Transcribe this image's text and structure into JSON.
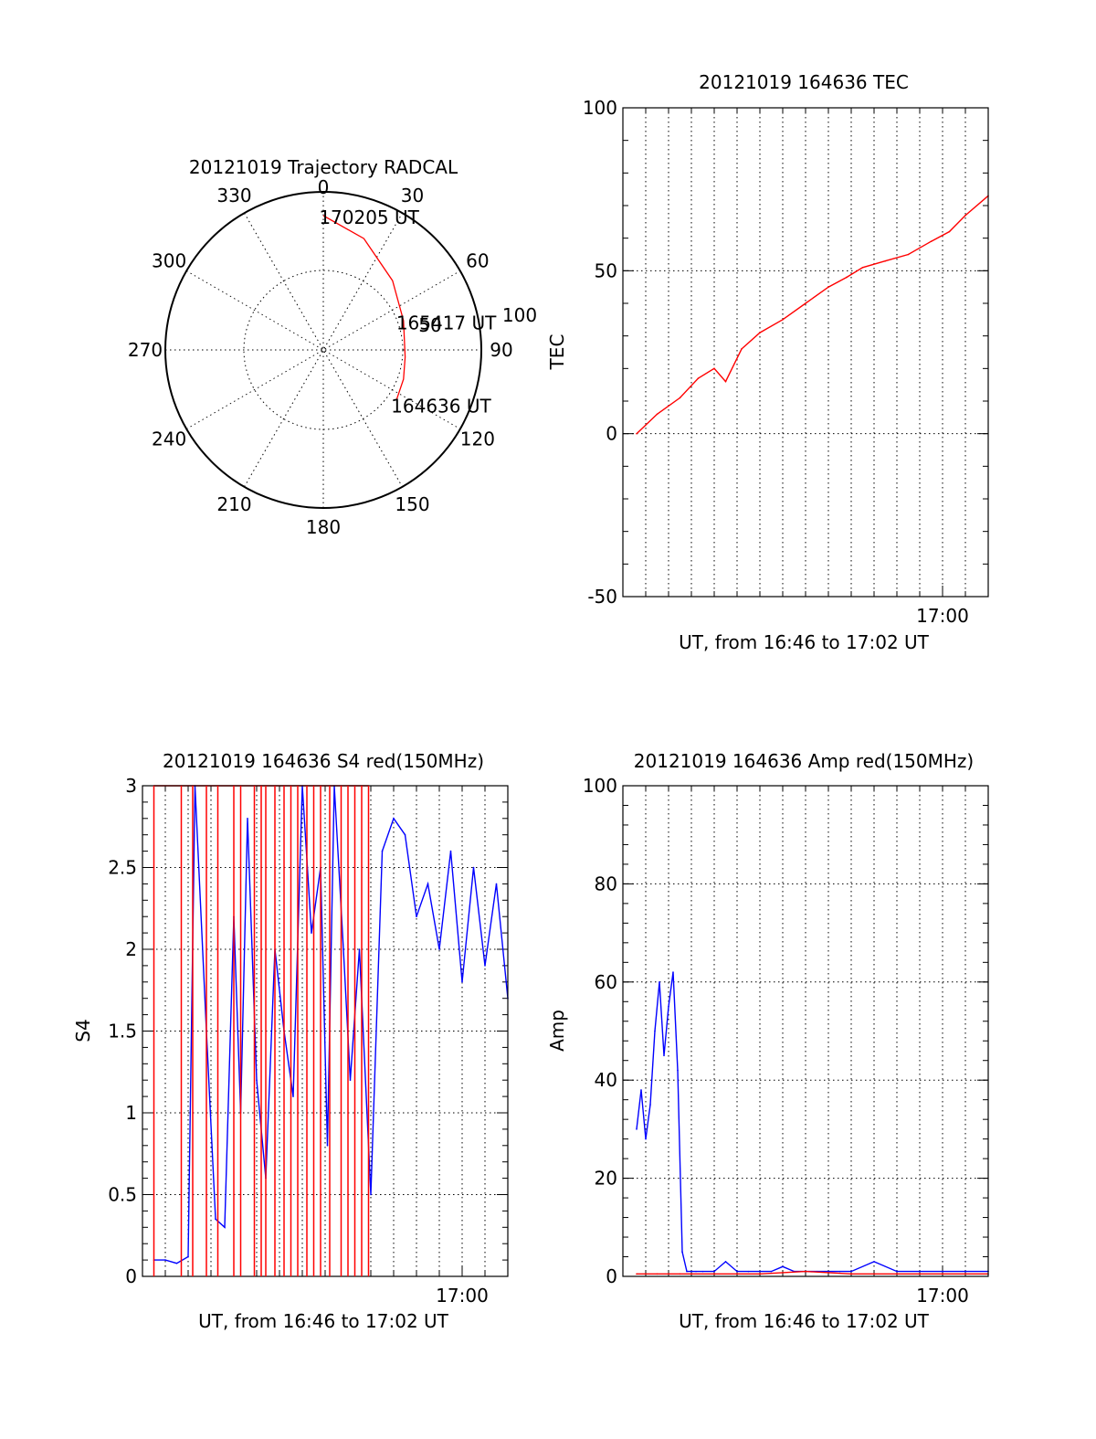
{
  "chart_data": [
    {
      "type": "polar",
      "title": "20121019 Trajectory RADCAL",
      "angle_labels": [
        "0",
        "30",
        "60",
        "90",
        "120",
        "150",
        "180",
        "210",
        "240",
        "270",
        "300",
        "330"
      ],
      "radius_labels": [
        "50",
        "100"
      ],
      "rmax": 100,
      "trajectory": {
        "color": "#ff0000",
        "points": [
          {
            "az": 0,
            "r": 85
          },
          {
            "az": 20,
            "r": 75
          },
          {
            "az": 45,
            "r": 62
          },
          {
            "az": 70,
            "r": 54
          },
          {
            "az": 95,
            "r": 52
          },
          {
            "az": 110,
            "r": 54
          },
          {
            "az": 124,
            "r": 56
          }
        ]
      },
      "annotations": [
        {
          "text": "170205 UT",
          "az": 2,
          "r": 88
        },
        {
          "text": "165417 UT",
          "az": 68,
          "r": 56
        },
        {
          "text": "164636 UT",
          "az": 123,
          "r": 58
        }
      ]
    },
    {
      "type": "line",
      "title": "20121019 164636 TEC",
      "ylabel": "TEC",
      "xlabel": "UT, from 16:46 to 17:02 UT",
      "ylim": [
        -50,
        100
      ],
      "yticks": [
        -50,
        0,
        50,
        100
      ],
      "xlim_min": [
        46.0,
        62.0
      ],
      "xtick_labels": [
        {
          "min": 60,
          "label": "17:00"
        }
      ],
      "grid": true,
      "series": [
        {
          "color": "#ff0000",
          "x": [
            46.6,
            47.5,
            48.5,
            49.3,
            50.0,
            50.5,
            51.2,
            52.0,
            53.0,
            54.0,
            55.0,
            55.8,
            56.5,
            57.5,
            58.5,
            59.5,
            60.3,
            61.0,
            62.0
          ],
          "y": [
            0,
            6,
            11,
            17,
            20,
            16,
            26,
            31,
            35,
            40,
            45,
            48,
            51,
            53,
            55,
            59,
            62,
            67,
            73
          ]
        }
      ]
    },
    {
      "type": "line",
      "title": "20121019 164636 S4 red(150MHz)",
      "ylabel": "S4",
      "xlabel": "UT, from 16:46 to 17:02 UT",
      "ylim": [
        0,
        3
      ],
      "yticks": [
        0,
        0.5,
        1,
        1.5,
        2,
        2.5,
        3
      ],
      "xlim_min": [
        46.0,
        62.0
      ],
      "xtick_labels": [
        {
          "min": 60,
          "label": "17:00"
        }
      ],
      "grid": true,
      "series": [
        {
          "color": "#ff0000",
          "name": "",
          "x": [
            46.5,
            47.7,
            48.2,
            48.8,
            49.3,
            50.0,
            50.3,
            50.9,
            51.2,
            51.4,
            51.8,
            52.2,
            52.5,
            52.8,
            53.2,
            53.5,
            53.8,
            54.2,
            54.7,
            55.0,
            55.3,
            55.6,
            55.9
          ],
          "y": [
            3,
            3,
            3,
            3,
            3,
            3,
            3,
            3,
            3,
            3,
            3,
            3,
            3,
            3,
            3,
            3,
            3,
            3,
            3,
            3,
            3,
            3,
            3
          ]
        },
        {
          "color": "#0000ff",
          "name": "",
          "x": [
            46.5,
            47.0,
            47.5,
            48.0,
            48.3,
            48.8,
            49.2,
            49.6,
            50.0,
            50.3,
            50.6,
            51.0,
            51.4,
            51.8,
            52.2,
            52.6,
            53.0,
            53.4,
            53.8,
            54.1,
            54.4,
            54.8,
            55.1,
            55.5,
            56.0,
            56.5,
            57.0,
            57.5,
            58.0,
            58.5,
            59.0,
            59.5,
            60.0,
            60.5,
            61.0,
            61.5,
            62.0
          ],
          "y": [
            0.1,
            0.1,
            0.08,
            0.12,
            3.0,
            1.5,
            0.35,
            0.3,
            2.2,
            1.0,
            2.8,
            1.2,
            0.6,
            2.0,
            1.5,
            1.1,
            3.0,
            2.1,
            2.5,
            0.8,
            3.0,
            2.0,
            1.2,
            2.0,
            0.5,
            2.6,
            2.8,
            2.7,
            2.2,
            2.4,
            2.0,
            2.6,
            1.8,
            2.5,
            1.9,
            2.4,
            1.7
          ]
        }
      ]
    },
    {
      "type": "line",
      "title": "20121019 164636 Amp red(150MHz)",
      "ylabel": "Amp",
      "xlabel": "UT, from 16:46 to 17:02 UT",
      "ylim": [
        0,
        100
      ],
      "yticks": [
        0,
        20,
        40,
        60,
        80,
        100
      ],
      "xlim_min": [
        46.0,
        62.0
      ],
      "xtick_labels": [
        {
          "min": 60,
          "label": "17:00"
        }
      ],
      "grid": true,
      "series": [
        {
          "color": "#0000ff",
          "name": "",
          "x": [
            46.6,
            46.8,
            47.0,
            47.2,
            47.4,
            47.6,
            47.8,
            48.0,
            48.2,
            48.4,
            48.6,
            48.8,
            49.0,
            49.2,
            49.5,
            50.0,
            50.5,
            51.0,
            51.5,
            52.0,
            52.5,
            53.0,
            53.5,
            54.0,
            54.5,
            55.0,
            55.5,
            56.0,
            57.0,
            58.0,
            59.0,
            60.0,
            61.0,
            62.0
          ],
          "y": [
            30,
            38,
            28,
            35,
            50,
            60,
            45,
            55,
            62,
            42,
            5,
            1,
            1,
            1,
            1,
            1,
            3,
            1,
            1,
            1,
            1,
            2,
            1,
            1,
            1,
            1,
            1,
            1,
            3,
            1,
            1,
            1,
            1,
            1
          ]
        },
        {
          "color": "#ff0000",
          "name": "",
          "x": [
            46.6,
            47.5,
            48.5,
            50.0,
            52.0,
            54.0,
            56.0,
            58.0,
            60.0,
            62.0
          ],
          "y": [
            0.5,
            0.5,
            0.5,
            0.5,
            0.5,
            1,
            0.5,
            0.5,
            0.5,
            0.5
          ]
        }
      ]
    }
  ]
}
